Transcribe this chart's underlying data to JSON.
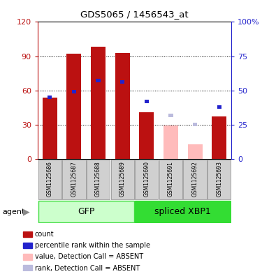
{
  "title": "GDS5065 / 1456543_at",
  "samples": [
    "GSM1125686",
    "GSM1125687",
    "GSM1125688",
    "GSM1125689",
    "GSM1125690",
    "GSM1125691",
    "GSM1125692",
    "GSM1125693"
  ],
  "count_values": [
    54,
    92,
    98,
    93,
    41,
    null,
    null,
    37
  ],
  "percentile_values": [
    45,
    49,
    57,
    56,
    42,
    null,
    null,
    38
  ],
  "absent_count_values": [
    null,
    null,
    null,
    null,
    null,
    29,
    13,
    null
  ],
  "absent_rank_values": [
    null,
    null,
    null,
    null,
    null,
    32,
    25,
    null
  ],
  "ylim_left": [
    0,
    120
  ],
  "ylim_right": [
    0,
    100
  ],
  "yticks_left": [
    0,
    30,
    60,
    90,
    120
  ],
  "ytick_labels_left": [
    "0",
    "30",
    "60",
    "90",
    "120"
  ],
  "yticks_right": [
    0,
    25,
    50,
    75,
    100
  ],
  "ytick_labels_right": [
    "0",
    "25",
    "50",
    "75",
    "100%"
  ],
  "bar_color_count": "#bb1111",
  "bar_color_percentile": "#2222cc",
  "bar_color_absent_count": "#ffbbbb",
  "bar_color_absent_rank": "#bbbbdd",
  "gfp_color_light": "#ccffcc",
  "gfp_color_dark": "#44dd44",
  "xbp1_color": "#33dd33",
  "legend_items": [
    {
      "label": "count",
      "color": "#bb1111"
    },
    {
      "label": "percentile rank within the sample",
      "color": "#2222cc"
    },
    {
      "label": "value, Detection Call = ABSENT",
      "color": "#ffbbbb"
    },
    {
      "label": "rank, Detection Call = ABSENT",
      "color": "#bbbbdd"
    }
  ],
  "group_names": [
    "GFP",
    "spliced XBP1"
  ],
  "group_ranges": [
    [
      0,
      3
    ],
    [
      4,
      7
    ]
  ]
}
